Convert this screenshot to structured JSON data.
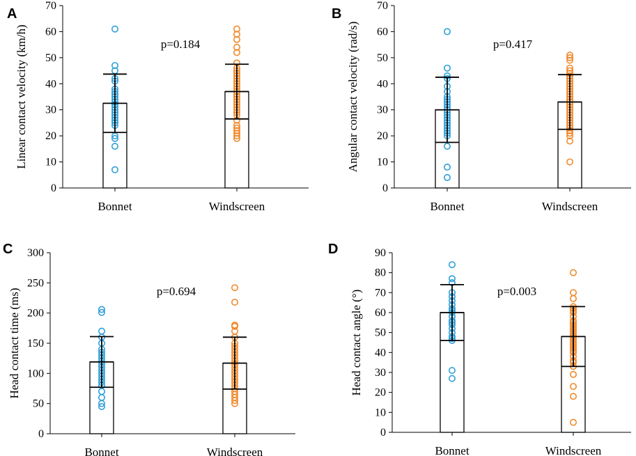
{
  "colors": {
    "bonnet": "#2e9fd8",
    "windscreen": "#f08a2c",
    "axis": "#000000"
  },
  "chart_data": [
    {
      "panel": "A",
      "type": "bar",
      "categories": [
        "Bonnet",
        "Windscreen"
      ],
      "ylabel": "Linear contact velocity (km/h)",
      "ylim": [
        0,
        70
      ],
      "yticks": [
        0,
        10,
        20,
        30,
        40,
        50,
        60,
        70
      ],
      "annotation": "p=0.184",
      "means": [
        32.5,
        37
      ],
      "sd": [
        11.2,
        10.5
      ],
      "points": [
        [
          61,
          47,
          45,
          42,
          41,
          38,
          37,
          36,
          35,
          34,
          33,
          32,
          31,
          30,
          29,
          28,
          27,
          26,
          25,
          24,
          20,
          19,
          16,
          7
        ],
        [
          61,
          59,
          57,
          54,
          52,
          48,
          46,
          45,
          44,
          43,
          42,
          41,
          40,
          39,
          38,
          37,
          36,
          35,
          34,
          33,
          32,
          31,
          30,
          29,
          28,
          26,
          24,
          23,
          22,
          21,
          20,
          19
        ]
      ]
    },
    {
      "panel": "B",
      "type": "bar",
      "categories": [
        "Bonnet",
        "Windscreen"
      ],
      "ylabel": "Angular contact velocity (rad/s)",
      "ylim": [
        0,
        70
      ],
      "yticks": [
        0,
        10,
        20,
        30,
        40,
        50,
        60,
        70
      ],
      "annotation": "p=0.417",
      "means": [
        30,
        33
      ],
      "sd": [
        12.5,
        10.5
      ],
      "points": [
        [
          60,
          46,
          43,
          42,
          39,
          37,
          35,
          34,
          33,
          32,
          31,
          30,
          29,
          28,
          27,
          26,
          25,
          24,
          23,
          22,
          21,
          20,
          16,
          8,
          4
        ],
        [
          51,
          50,
          49,
          46,
          45,
          44,
          43,
          42,
          41,
          40,
          39,
          38,
          37,
          36,
          35,
          34,
          33,
          32,
          31,
          30,
          29,
          28,
          27,
          26,
          25,
          24,
          23,
          22,
          21,
          20,
          18,
          10
        ]
      ]
    },
    {
      "panel": "C",
      "type": "bar",
      "categories": [
        "Bonnet",
        "Windscreen"
      ],
      "ylabel": "Head contact time (ms)",
      "ylim": [
        0,
        300
      ],
      "yticks": [
        0,
        50,
        100,
        150,
        200,
        250,
        300
      ],
      "annotation": "p=0.694",
      "means": [
        119,
        117
      ],
      "sd": [
        42,
        43
      ],
      "points": [
        [
          206,
          201,
          170,
          160,
          150,
          140,
          135,
          130,
          125,
          120,
          115,
          110,
          105,
          100,
          95,
          90,
          85,
          80,
          70,
          60,
          50,
          45
        ],
        [
          242,
          218,
          180,
          178,
          170,
          160,
          150,
          145,
          140,
          135,
          130,
          125,
          120,
          115,
          110,
          105,
          100,
          95,
          90,
          85,
          80,
          75,
          70,
          65,
          60,
          55,
          50
        ]
      ]
    },
    {
      "panel": "D",
      "type": "bar",
      "categories": [
        "Bonnet",
        "Windscreen"
      ],
      "ylabel": "Head contact angle (°)",
      "ylim": [
        0,
        90
      ],
      "yticks": [
        0,
        10,
        20,
        30,
        40,
        50,
        60,
        70,
        80,
        90
      ],
      "annotation": "p=0.003",
      "means": [
        60,
        48
      ],
      "sd": [
        14,
        15
      ],
      "points": [
        [
          84,
          77,
          75,
          70,
          68,
          66,
          64,
          62,
          61,
          60,
          58,
          56,
          55,
          54,
          52,
          50,
          48,
          47,
          46,
          31,
          27
        ],
        [
          80,
          70,
          67,
          63,
          62,
          61,
          60,
          58,
          56,
          55,
          54,
          53,
          52,
          51,
          50,
          49,
          48,
          47,
          46,
          45,
          44,
          43,
          42,
          41,
          40,
          38,
          36,
          35,
          33,
          29,
          23,
          18,
          5
        ]
      ]
    }
  ]
}
